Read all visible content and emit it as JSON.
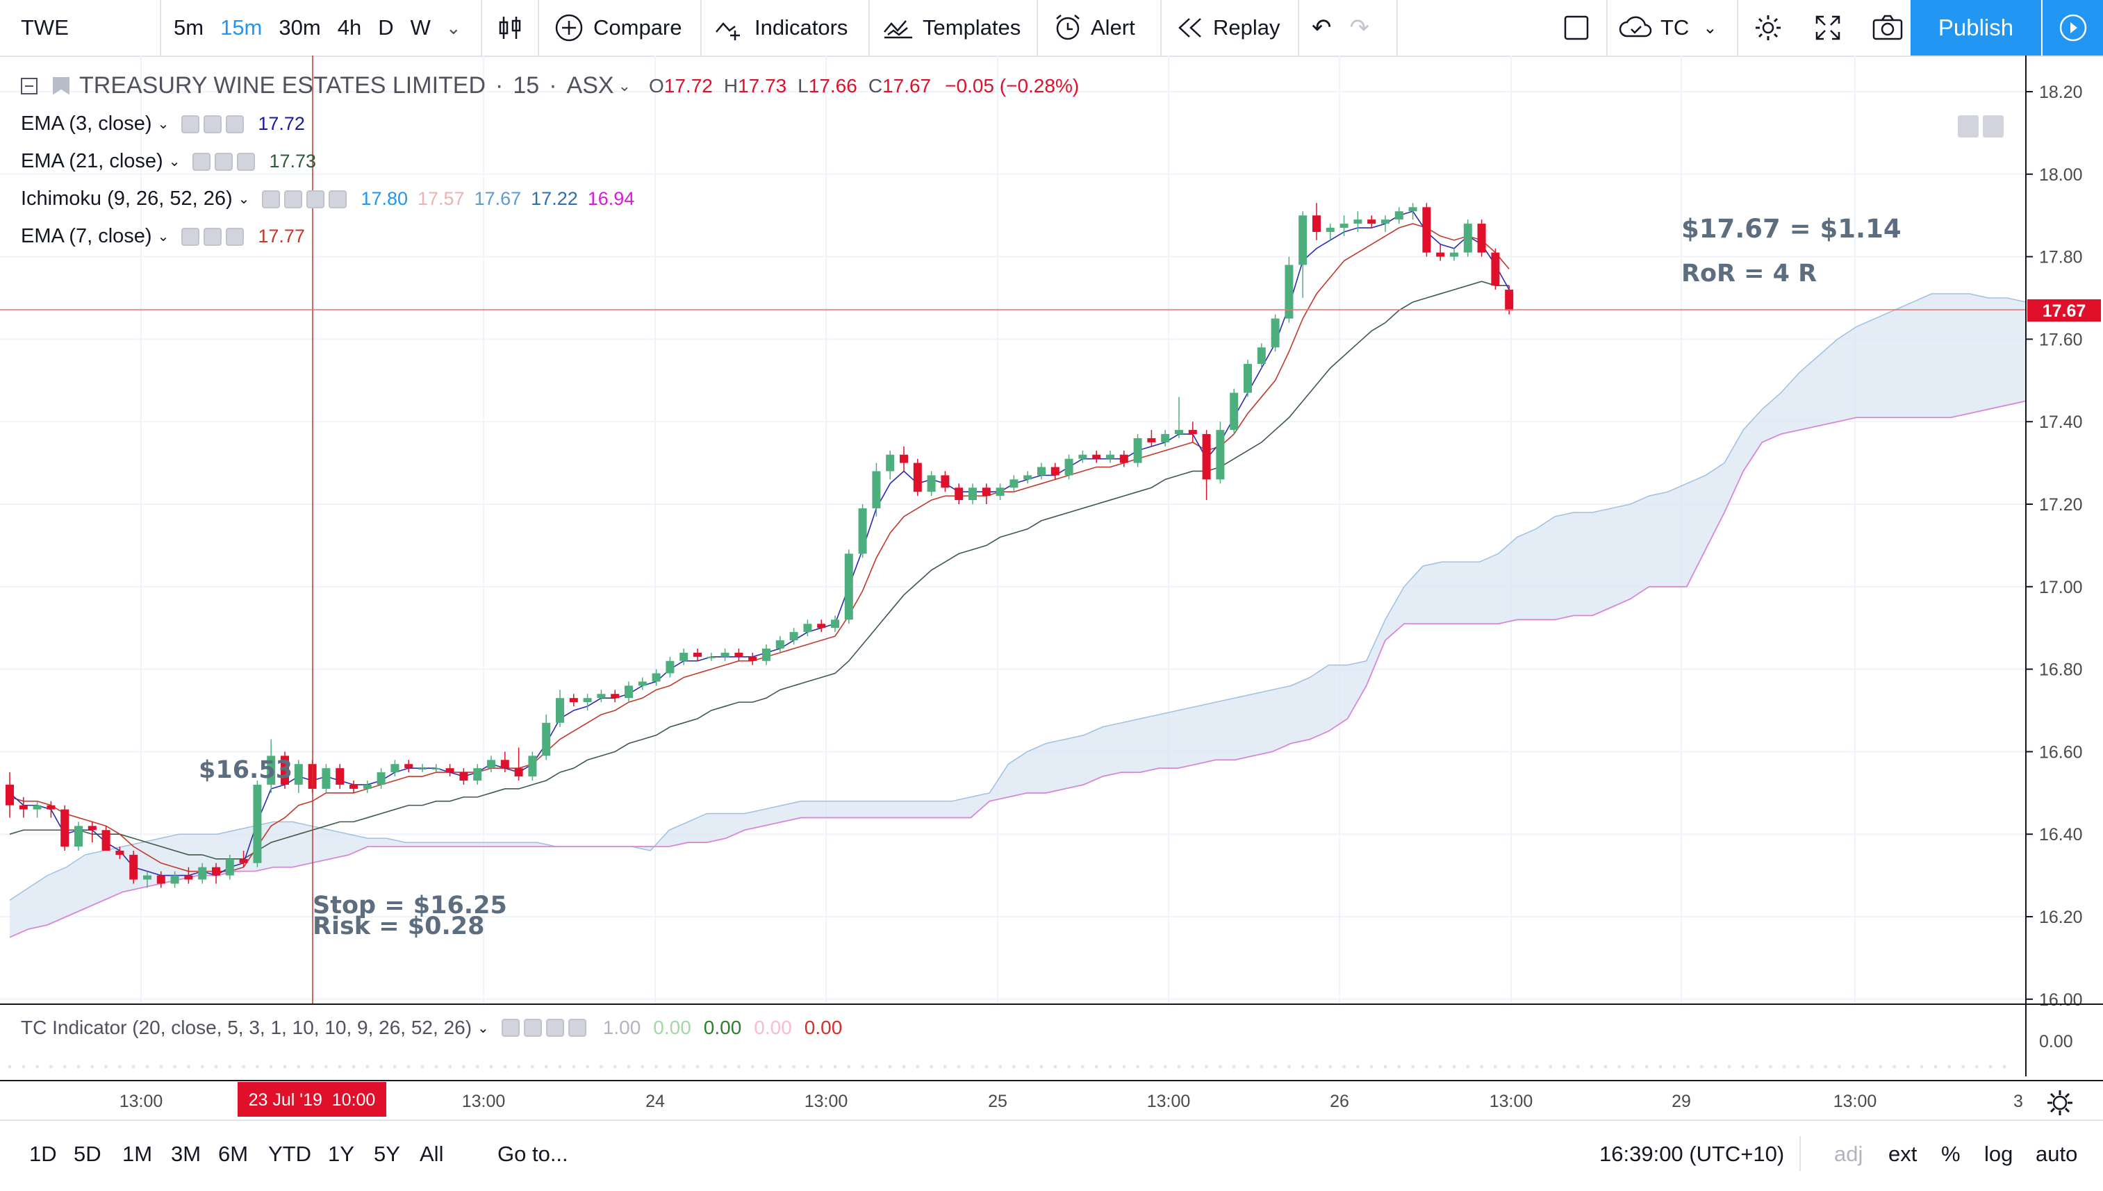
{
  "toolbar": {
    "symbol": "TWE",
    "timeframes": [
      "5m",
      "15m",
      "30m",
      "4h",
      "D",
      "W"
    ],
    "active_timeframe": "15m",
    "compare": "Compare",
    "indicators": "Indicators",
    "templates": "Templates",
    "alert": "Alert",
    "replay": "Replay",
    "layout_name": "TC",
    "publish": "Publish"
  },
  "legend": {
    "title": "TREASURY WINE ESTATES LIMITED",
    "interval": "15",
    "exchange": "ASX",
    "open_label": "O",
    "open": "17.72",
    "high_label": "H",
    "high": "17.73",
    "low_label": "L",
    "low": "17.66",
    "close_label": "C",
    "close": "17.67",
    "change": "−0.05 (−0.28%)",
    "indicators": [
      {
        "name": "EMA (3, close)",
        "values": [
          "17.72"
        ],
        "colors": [
          "#1a1aa0"
        ]
      },
      {
        "name": "EMA (21, close)",
        "values": [
          "17.73"
        ],
        "colors": [
          "#2e5a3c"
        ]
      },
      {
        "name": "Ichimoku (9, 26, 52, 26)",
        "values": [
          "17.80",
          "17.57",
          "17.67",
          "17.22",
          "16.94"
        ],
        "colors": [
          "#2196f3",
          "#e8b4b4",
          "#5b9bd5",
          "#2e6fb0",
          "#d81bd8"
        ]
      },
      {
        "name": "EMA (7, close)",
        "values": [
          "17.77"
        ],
        "colors": [
          "#c0392b"
        ]
      }
    ]
  },
  "annotations": {
    "entry": "$16.53",
    "stop": "Stop = $16.25",
    "risk": "Risk = $0.28",
    "target": "$17.67 = $1.14",
    "ror": "RoR = 4 R"
  },
  "price_axis": {
    "ticks": [
      "18.20",
      "18.00",
      "17.80",
      "17.60",
      "17.40",
      "17.20",
      "17.00",
      "16.80",
      "16.60",
      "16.40",
      "16.20",
      "16.00"
    ],
    "last_price": "17.67"
  },
  "time_axis": {
    "ticks": [
      "13:00",
      "24",
      "13:00",
      "25",
      "13:00",
      "26",
      "13:00",
      "29",
      "13:00",
      "3"
    ],
    "cursor_label": "23 Jul '19  10:00"
  },
  "subpane": {
    "title": "TC Indicator (20, close, 5, 3, 1, 10, 10, 9, 26, 52, 26)",
    "values": [
      "1.00",
      "0.00",
      "0.00",
      "0.00",
      "0.00"
    ],
    "value_colors": [
      "#b2b5be",
      "#a5d6a7",
      "#2e7d32",
      "#f8bbd0",
      "#d32f2f"
    ],
    "axis_label": "0.00"
  },
  "bottom": {
    "ranges": [
      "1D",
      "5D",
      "1M",
      "3M",
      "6M",
      "YTD",
      "1Y",
      "5Y",
      "All"
    ],
    "goto": "Go to...",
    "clock": "16:39:00 (UTC+10)",
    "options": [
      "adj",
      "ext",
      "%",
      "log",
      "auto"
    ]
  },
  "colors": {
    "up": "#4caf7d",
    "down": "#e0102a",
    "accent": "#2196f3",
    "cloud": "#dbe6f3"
  },
  "chart_data": {
    "type": "candlestick",
    "title": "TREASURY WINE ESTATES LIMITED",
    "ylim": [
      16.0,
      18.25
    ],
    "candles": [
      [
        16.52,
        16.55,
        16.44,
        16.47
      ],
      [
        16.47,
        16.49,
        16.44,
        16.46
      ],
      [
        16.46,
        16.48,
        16.44,
        16.47
      ],
      [
        16.47,
        16.48,
        16.44,
        16.46
      ],
      [
        16.46,
        16.47,
        16.36,
        16.37
      ],
      [
        16.37,
        16.43,
        16.36,
        16.42
      ],
      [
        16.42,
        16.43,
        16.38,
        16.41
      ],
      [
        16.41,
        16.42,
        16.36,
        16.36
      ],
      [
        16.36,
        16.37,
        16.34,
        16.35
      ],
      [
        16.35,
        16.36,
        16.28,
        16.29
      ],
      [
        16.29,
        16.31,
        16.27,
        16.3
      ],
      [
        16.3,
        16.31,
        16.27,
        16.28
      ],
      [
        16.28,
        16.31,
        16.27,
        16.3
      ],
      [
        16.3,
        16.32,
        16.28,
        16.29
      ],
      [
        16.29,
        16.33,
        16.28,
        16.32
      ],
      [
        16.32,
        16.33,
        16.28,
        16.3
      ],
      [
        16.3,
        16.35,
        16.29,
        16.34
      ],
      [
        16.34,
        16.36,
        16.32,
        16.33
      ],
      [
        16.33,
        16.53,
        16.32,
        16.52
      ],
      [
        16.52,
        16.63,
        16.5,
        16.59
      ],
      [
        16.59,
        16.6,
        16.51,
        16.52
      ],
      [
        16.52,
        16.58,
        16.5,
        16.57
      ],
      [
        16.57,
        16.58,
        16.5,
        16.51
      ],
      [
        16.51,
        16.57,
        16.5,
        16.56
      ],
      [
        16.56,
        16.57,
        16.51,
        16.52
      ],
      [
        16.52,
        16.53,
        16.5,
        16.51
      ],
      [
        16.51,
        16.53,
        16.5,
        16.52
      ],
      [
        16.52,
        16.56,
        16.51,
        16.55
      ],
      [
        16.55,
        16.58,
        16.54,
        16.57
      ],
      [
        16.57,
        16.58,
        16.55,
        16.56
      ],
      [
        16.56,
        16.57,
        16.55,
        16.56
      ],
      [
        16.56,
        16.57,
        16.55,
        16.56
      ],
      [
        16.56,
        16.57,
        16.54,
        16.55
      ],
      [
        16.55,
        16.56,
        16.52,
        16.53
      ],
      [
        16.53,
        16.57,
        16.52,
        16.56
      ],
      [
        16.56,
        16.59,
        16.55,
        16.58
      ],
      [
        16.58,
        16.6,
        16.55,
        16.56
      ],
      [
        16.56,
        16.61,
        16.53,
        16.54
      ],
      [
        16.54,
        16.6,
        16.53,
        16.59
      ],
      [
        16.59,
        16.69,
        16.58,
        16.67
      ],
      [
        16.67,
        16.75,
        16.66,
        16.73
      ],
      [
        16.73,
        16.74,
        16.71,
        16.72
      ],
      [
        16.72,
        16.74,
        16.7,
        16.73
      ],
      [
        16.73,
        16.75,
        16.72,
        16.74
      ],
      [
        16.74,
        16.75,
        16.72,
        16.73
      ],
      [
        16.73,
        16.77,
        16.72,
        16.76
      ],
      [
        16.76,
        16.78,
        16.75,
        16.77
      ],
      [
        16.77,
        16.8,
        16.76,
        16.79
      ],
      [
        16.79,
        16.83,
        16.78,
        16.82
      ],
      [
        16.82,
        16.85,
        16.81,
        16.84
      ],
      [
        16.84,
        16.85,
        16.82,
        16.83
      ],
      [
        16.83,
        16.84,
        16.82,
        16.83
      ],
      [
        16.83,
        16.85,
        16.82,
        16.84
      ],
      [
        16.84,
        16.85,
        16.82,
        16.83
      ],
      [
        16.83,
        16.84,
        16.81,
        16.82
      ],
      [
        16.82,
        16.86,
        16.81,
        16.85
      ],
      [
        16.85,
        16.88,
        16.84,
        16.87
      ],
      [
        16.87,
        16.9,
        16.86,
        16.89
      ],
      [
        16.89,
        16.92,
        16.88,
        16.91
      ],
      [
        16.91,
        16.92,
        16.89,
        16.9
      ],
      [
        16.9,
        16.93,
        16.89,
        16.92
      ],
      [
        16.92,
        17.09,
        16.91,
        17.08
      ],
      [
        17.08,
        17.2,
        17.07,
        17.19
      ],
      [
        17.19,
        17.3,
        17.17,
        17.28
      ],
      [
        17.28,
        17.33,
        17.26,
        17.32
      ],
      [
        17.32,
        17.34,
        17.28,
        17.3
      ],
      [
        17.3,
        17.31,
        17.22,
        17.23
      ],
      [
        17.23,
        17.28,
        17.22,
        17.27
      ],
      [
        17.27,
        17.28,
        17.23,
        17.24
      ],
      [
        17.24,
        17.25,
        17.2,
        17.21
      ],
      [
        17.21,
        17.25,
        17.2,
        17.24
      ],
      [
        17.24,
        17.25,
        17.2,
        17.22
      ],
      [
        17.22,
        17.25,
        17.21,
        17.24
      ],
      [
        17.24,
        17.27,
        17.23,
        17.26
      ],
      [
        17.26,
        17.28,
        17.25,
        17.27
      ],
      [
        17.27,
        17.3,
        17.26,
        17.29
      ],
      [
        17.29,
        17.3,
        17.26,
        17.27
      ],
      [
        17.27,
        17.32,
        17.26,
        17.31
      ],
      [
        17.31,
        17.33,
        17.3,
        17.32
      ],
      [
        17.32,
        17.33,
        17.3,
        17.31
      ],
      [
        17.31,
        17.33,
        17.3,
        17.32
      ],
      [
        17.32,
        17.33,
        17.29,
        17.3
      ],
      [
        17.3,
        17.37,
        17.29,
        17.36
      ],
      [
        17.36,
        17.38,
        17.34,
        17.35
      ],
      [
        17.35,
        17.38,
        17.34,
        17.37
      ],
      [
        17.37,
        17.46,
        17.36,
        17.38
      ],
      [
        17.38,
        17.4,
        17.35,
        17.37
      ],
      [
        17.37,
        17.38,
        17.21,
        17.26
      ],
      [
        17.26,
        17.4,
        17.25,
        17.38
      ],
      [
        17.38,
        17.48,
        17.37,
        17.47
      ],
      [
        17.47,
        17.55,
        17.46,
        17.54
      ],
      [
        17.54,
        17.59,
        17.53,
        17.58
      ],
      [
        17.58,
        17.66,
        17.57,
        17.65
      ],
      [
        17.65,
        17.8,
        17.64,
        17.78
      ],
      [
        17.78,
        17.91,
        17.7,
        17.9
      ],
      [
        17.9,
        17.93,
        17.84,
        17.86
      ],
      [
        17.86,
        17.88,
        17.84,
        17.87
      ],
      [
        17.87,
        17.9,
        17.85,
        17.88
      ],
      [
        17.88,
        17.91,
        17.86,
        17.89
      ],
      [
        17.89,
        17.9,
        17.87,
        17.88
      ],
      [
        17.88,
        17.9,
        17.86,
        17.89
      ],
      [
        17.89,
        17.92,
        17.88,
        17.91
      ],
      [
        17.91,
        17.93,
        17.89,
        17.92
      ],
      [
        17.92,
        17.93,
        17.8,
        17.81
      ],
      [
        17.81,
        17.83,
        17.79,
        17.8
      ],
      [
        17.8,
        17.82,
        17.79,
        17.81
      ],
      [
        17.81,
        17.89,
        17.8,
        17.88
      ],
      [
        17.88,
        17.89,
        17.8,
        17.81
      ],
      [
        17.81,
        17.82,
        17.72,
        17.73
      ],
      [
        17.72,
        17.73,
        17.66,
        17.67
      ]
    ],
    "ema3": [
      16.5,
      16.47,
      16.47,
      16.46,
      16.4,
      16.41,
      16.41,
      16.38,
      16.36,
      16.32,
      16.31,
      16.3,
      16.3,
      16.3,
      16.31,
      16.3,
      16.32,
      16.33,
      16.43,
      16.51,
      16.52,
      16.54,
      16.53,
      16.54,
      16.53,
      16.52,
      16.52,
      16.53,
      16.55,
      16.56,
      16.56,
      16.56,
      16.55,
      16.54,
      16.55,
      16.57,
      16.56,
      16.55,
      16.57,
      16.62,
      16.68,
      16.7,
      16.71,
      16.73,
      16.73,
      16.74,
      16.76,
      16.77,
      16.8,
      16.82,
      16.82,
      16.83,
      16.83,
      16.83,
      16.83,
      16.84,
      16.85,
      16.87,
      16.89,
      16.9,
      16.91,
      17.0,
      17.09,
      17.19,
      17.25,
      17.28,
      17.25,
      17.26,
      17.25,
      17.23,
      17.23,
      17.23,
      17.23,
      17.25,
      17.26,
      17.27,
      17.27,
      17.29,
      17.31,
      17.31,
      17.31,
      17.31,
      17.33,
      17.34,
      17.35,
      17.37,
      17.37,
      17.31,
      17.35,
      17.41,
      17.47,
      17.53,
      17.59,
      17.68,
      17.79,
      17.82,
      17.84,
      17.86,
      17.87,
      17.87,
      17.88,
      17.9,
      17.91,
      17.86,
      17.83,
      17.82,
      17.85,
      17.83,
      17.78,
      17.72
    ],
    "ema7": [
      16.49,
      16.48,
      16.48,
      16.47,
      16.45,
      16.44,
      16.43,
      16.42,
      16.4,
      16.37,
      16.35,
      16.33,
      16.32,
      16.31,
      16.31,
      16.31,
      16.31,
      16.32,
      16.37,
      16.42,
      16.44,
      16.47,
      16.48,
      16.5,
      16.5,
      16.5,
      16.51,
      16.52,
      16.53,
      16.54,
      16.54,
      16.55,
      16.55,
      16.55,
      16.55,
      16.56,
      16.56,
      16.56,
      16.57,
      16.6,
      16.63,
      16.65,
      16.67,
      16.69,
      16.7,
      16.72,
      16.73,
      16.75,
      16.76,
      16.78,
      16.79,
      16.8,
      16.81,
      16.82,
      16.82,
      16.83,
      16.84,
      16.85,
      16.86,
      16.87,
      16.88,
      16.93,
      16.99,
      17.07,
      17.13,
      17.17,
      17.19,
      17.21,
      17.22,
      17.22,
      17.22,
      17.22,
      17.23,
      17.23,
      17.24,
      17.25,
      17.26,
      17.27,
      17.28,
      17.29,
      17.29,
      17.3,
      17.31,
      17.32,
      17.33,
      17.34,
      17.35,
      17.33,
      17.34,
      17.37,
      17.42,
      17.46,
      17.5,
      17.57,
      17.65,
      17.71,
      17.75,
      17.79,
      17.81,
      17.83,
      17.85,
      17.87,
      17.88,
      17.87,
      17.85,
      17.84,
      17.85,
      17.84,
      17.81,
      17.77
    ],
    "ema21": [
      16.4,
      16.41,
      16.41,
      16.41,
      16.41,
      16.41,
      16.4,
      16.4,
      16.4,
      16.39,
      16.38,
      16.37,
      16.36,
      16.35,
      16.35,
      16.34,
      16.34,
      16.34,
      16.36,
      16.38,
      16.39,
      16.4,
      16.41,
      16.42,
      16.43,
      16.43,
      16.44,
      16.45,
      16.46,
      16.47,
      16.47,
      16.48,
      16.48,
      16.49,
      16.49,
      16.5,
      16.51,
      16.51,
      16.52,
      16.53,
      16.55,
      16.56,
      16.58,
      16.59,
      16.6,
      16.62,
      16.63,
      16.64,
      16.66,
      16.67,
      16.68,
      16.7,
      16.71,
      16.72,
      16.72,
      16.73,
      16.75,
      16.76,
      16.77,
      16.78,
      16.79,
      16.82,
      16.86,
      16.9,
      16.94,
      16.98,
      17.01,
      17.04,
      17.06,
      17.08,
      17.09,
      17.1,
      17.12,
      17.13,
      17.14,
      17.16,
      17.17,
      17.18,
      17.19,
      17.2,
      17.21,
      17.22,
      17.23,
      17.24,
      17.26,
      17.27,
      17.28,
      17.28,
      17.29,
      17.31,
      17.33,
      17.35,
      17.38,
      17.41,
      17.45,
      17.49,
      17.53,
      17.56,
      17.59,
      17.62,
      17.64,
      17.67,
      17.69,
      17.7,
      17.71,
      17.72,
      17.73,
      17.74,
      17.73,
      17.73
    ],
    "cloud_span_a": [
      16.24,
      16.27,
      16.3,
      16.32,
      16.35,
      16.36,
      16.37,
      16.38,
      16.39,
      16.4,
      16.4,
      16.4,
      16.41,
      16.42,
      16.43,
      16.43,
      16.42,
      16.41,
      16.4,
      16.39,
      16.39,
      16.38,
      16.38,
      16.38,
      16.38,
      16.38,
      16.38,
      16.38,
      16.38,
      16.37,
      16.37,
      16.37,
      16.37,
      16.37,
      16.36,
      16.41,
      16.43,
      16.45,
      16.45,
      16.45,
      16.46,
      16.47,
      16.48,
      16.48,
      16.48,
      16.48,
      16.48,
      16.48,
      16.48,
      16.48,
      16.48,
      16.49,
      16.5,
      16.57,
      16.6,
      16.62,
      16.63,
      16.64,
      16.66,
      16.67,
      16.68,
      16.69,
      16.7,
      16.71,
      16.72,
      16.73,
      16.74,
      16.75,
      16.76,
      16.78,
      16.81,
      16.81,
      16.82,
      16.92,
      17.0,
      17.05,
      17.06,
      17.06,
      17.06,
      17.08,
      17.12,
      17.14,
      17.17,
      17.18,
      17.18,
      17.19,
      17.2,
      17.22,
      17.23,
      17.25,
      17.27,
      17.3,
      17.38,
      17.43,
      17.47,
      17.52,
      17.56,
      17.6,
      17.63,
      17.65,
      17.67,
      17.69,
      17.71,
      17.71,
      17.71,
      17.7,
      17.7,
      17.69
    ],
    "cloud_span_b": [
      16.15,
      16.17,
      16.18,
      16.2,
      16.22,
      16.24,
      16.26,
      16.27,
      16.28,
      16.29,
      16.3,
      16.3,
      16.31,
      16.31,
      16.32,
      16.32,
      16.33,
      16.34,
      16.35,
      16.37,
      16.37,
      16.37,
      16.37,
      16.37,
      16.37,
      16.37,
      16.37,
      16.37,
      16.37,
      16.37,
      16.37,
      16.37,
      16.37,
      16.37,
      16.37,
      16.37,
      16.38,
      16.38,
      16.39,
      16.41,
      16.42,
      16.43,
      16.44,
      16.44,
      16.44,
      16.44,
      16.44,
      16.44,
      16.44,
      16.44,
      16.44,
      16.44,
      16.48,
      16.49,
      16.5,
      16.5,
      16.51,
      16.52,
      16.54,
      16.55,
      16.55,
      16.56,
      16.56,
      16.57,
      16.58,
      16.58,
      16.59,
      16.6,
      16.62,
      16.63,
      16.65,
      16.68,
      16.76,
      16.87,
      16.91,
      16.91,
      16.91,
      16.91,
      16.91,
      16.91,
      16.92,
      16.92,
      16.92,
      16.93,
      16.93,
      16.95,
      16.97,
      17.0,
      17.0,
      17.0,
      17.09,
      17.18,
      17.28,
      17.35,
      17.37,
      17.38,
      17.39,
      17.4,
      17.41,
      17.41,
      17.41,
      17.41,
      17.41,
      17.41,
      17.42,
      17.43,
      17.44,
      17.45
    ],
    "cursor_x_label": "23 Jul '19  10:00",
    "last_price": 17.67
  }
}
